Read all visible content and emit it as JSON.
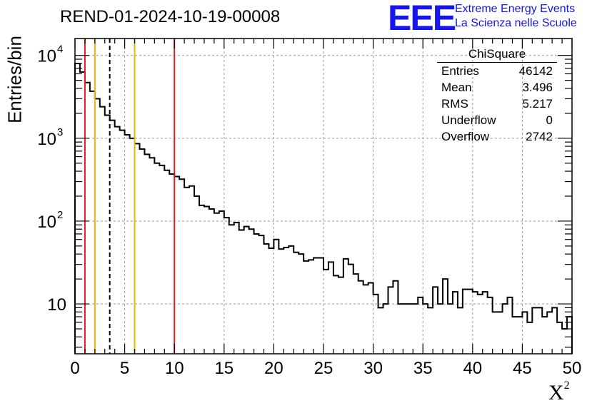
{
  "header": {
    "title": "REND-01-2024-10-19-00008",
    "logo_text": "EEE",
    "logo_line1": "Extreme Energy Events",
    "logo_line2": "La Scienza nelle Scuole"
  },
  "stats_box": {
    "name": "ChiSquare",
    "rows": [
      {
        "label": "Entries",
        "value": "46142"
      },
      {
        "label": "Mean",
        "value": "3.496"
      },
      {
        "label": "RMS",
        "value": "5.217"
      },
      {
        "label": "Underflow",
        "value": "0"
      },
      {
        "label": "Overflow",
        "value": "2742"
      }
    ]
  },
  "colors": {
    "cut_red": "#e81c1c",
    "cut_orange": "#f0b400",
    "histogram": "#000000",
    "grid": "#999999",
    "logo": "#1515ee"
  },
  "chart_data": {
    "type": "histogram",
    "title": "REND-01-2024-10-19-00008",
    "xlabel": "X",
    "xlabel_superscript": "2",
    "ylabel": "Entries/bin",
    "xlim": [
      0,
      50
    ],
    "ylim": [
      2.5,
      16000
    ],
    "yscale": "log",
    "bin_width": 0.5,
    "grid": true,
    "x_ticks": [
      0,
      5,
      10,
      15,
      20,
      25,
      30,
      35,
      40,
      45,
      50
    ],
    "y_ticks": [
      {
        "value": 10,
        "label": "10",
        "exp": ""
      },
      {
        "value": 100,
        "label": "10",
        "exp": "2"
      },
      {
        "value": 1000,
        "label": "10",
        "exp": "3"
      },
      {
        "value": 10000,
        "label": "10",
        "exp": "4"
      }
    ],
    "values": [
      8000,
      6300,
      4700,
      3700,
      3000,
      2400,
      1900,
      1650,
      1380,
      1250,
      1100,
      1000,
      860,
      740,
      640,
      580,
      500,
      470,
      410,
      370,
      345,
      320,
      255,
      265,
      200,
      155,
      150,
      140,
      125,
      132,
      110,
      90,
      96,
      78,
      86,
      80,
      70,
      67,
      53,
      47,
      60,
      46,
      48,
      50,
      42,
      40,
      33,
      34,
      36,
      36,
      26,
      32,
      22,
      21,
      35,
      30,
      23,
      19,
      17,
      18,
      13,
      9,
      10,
      16,
      19,
      10,
      10,
      10,
      10,
      12,
      10,
      9,
      16,
      10,
      20,
      10,
      14,
      9,
      15,
      15,
      14,
      13,
      14,
      12,
      8,
      8,
      10,
      12,
      7,
      7,
      8,
      6,
      9,
      9,
      7,
      8,
      9,
      6,
      5,
      7
    ],
    "cut_lines": [
      {
        "x": 1,
        "color": "red"
      },
      {
        "x": 2,
        "color": "orange"
      },
      {
        "x": 3.496,
        "color": "black",
        "style": "dashed"
      },
      {
        "x": 6,
        "color": "orange"
      },
      {
        "x": 10,
        "color": "red"
      }
    ]
  }
}
